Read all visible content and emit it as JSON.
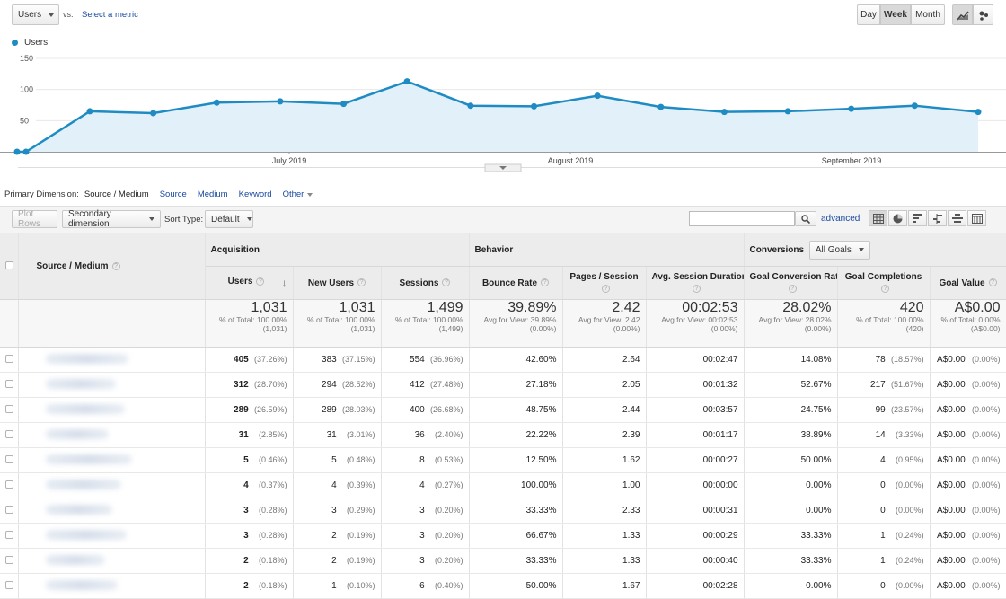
{
  "header": {
    "metric_select": "Users",
    "vs_label": "vs.",
    "select_metric_link": "Select a metric",
    "periods": [
      "Day",
      "Week",
      "Month"
    ],
    "active_period": "Week"
  },
  "chart_data": {
    "type": "line",
    "series": [
      {
        "name": "Users",
        "values": [
          0,
          0,
          65,
          62,
          79,
          81,
          77,
          113,
          74,
          73,
          90,
          72,
          64,
          65,
          69,
          74,
          64
        ]
      }
    ],
    "x_labels": [
      "July 2019",
      "August 2019",
      "September 2019"
    ],
    "left_label": "...",
    "yticks": [
      50,
      100,
      150
    ],
    "ylim": [
      0,
      150
    ],
    "color": "#1e8bc3",
    "fill": "#e2f0f9",
    "grid": true
  },
  "dimension_bar": {
    "label": "Primary Dimension:",
    "current": "Source / Medium",
    "options": [
      "Source",
      "Medium",
      "Keyword",
      "Other"
    ]
  },
  "toolbar": {
    "plot_rows": "Plot Rows",
    "secondary_dimension": "Secondary dimension",
    "sort_type_label": "Sort Type:",
    "sort_type_value": "Default",
    "search_placeholder": "",
    "advanced": "advanced"
  },
  "table": {
    "dim_header": "Source / Medium",
    "groups": {
      "acquisition": "Acquisition",
      "behavior": "Behavior",
      "conversions": "Conversions",
      "goals_select": "All Goals"
    },
    "columns": [
      "Users",
      "New Users",
      "Sessions",
      "Bounce Rate",
      "Pages / Session",
      "Avg. Session Duration",
      "Goal Conversion Rate",
      "Goal Completions",
      "Goal Value"
    ],
    "totals": [
      {
        "value": "1,031",
        "l1": "% of Total: 100.00%",
        "l2": "(1,031)"
      },
      {
        "value": "1,031",
        "l1": "% of Total: 100.00%",
        "l2": "(1,031)"
      },
      {
        "value": "1,499",
        "l1": "% of Total: 100.00%",
        "l2": "(1,499)"
      },
      {
        "value": "39.89%",
        "l1": "Avg for View: 39.89%",
        "l2": "(0.00%)"
      },
      {
        "value": "2.42",
        "l1": "Avg for View: 2.42",
        "l2": "(0.00%)"
      },
      {
        "value": "00:02:53",
        "l1": "Avg for View: 00:02:53",
        "l2": "(0.00%)"
      },
      {
        "value": "28.02%",
        "l1": "Avg for View: 28.02%",
        "l2": "(0.00%)"
      },
      {
        "value": "420",
        "l1": "% of Total: 100.00%",
        "l2": "(420)"
      },
      {
        "value": "A$0.00",
        "l1": "% of Total: 0.00%",
        "l2": "(A$0.00)"
      }
    ],
    "rows": [
      {
        "users": "405",
        "users_pct": "(37.26%)",
        "new": "383",
        "new_pct": "(37.15%)",
        "sess": "554",
        "sess_pct": "(36.96%)",
        "bounce": "42.60%",
        "pps": "2.64",
        "dur": "00:02:47",
        "gcr": "14.08%",
        "gc": "78",
        "gc_pct": "(18.57%)",
        "gv": "A$0.00",
        "gv_pct": "(0.00%)"
      },
      {
        "users": "312",
        "users_pct": "(28.70%)",
        "new": "294",
        "new_pct": "(28.52%)",
        "sess": "412",
        "sess_pct": "(27.48%)",
        "bounce": "27.18%",
        "pps": "2.05",
        "dur": "00:01:32",
        "gcr": "52.67%",
        "gc": "217",
        "gc_pct": "(51.67%)",
        "gv": "A$0.00",
        "gv_pct": "(0.00%)"
      },
      {
        "users": "289",
        "users_pct": "(26.59%)",
        "new": "289",
        "new_pct": "(28.03%)",
        "sess": "400",
        "sess_pct": "(26.68%)",
        "bounce": "48.75%",
        "pps": "2.44",
        "dur": "00:03:57",
        "gcr": "24.75%",
        "gc": "99",
        "gc_pct": "(23.57%)",
        "gv": "A$0.00",
        "gv_pct": "(0.00%)"
      },
      {
        "users": "31",
        "users_pct": "(2.85%)",
        "new": "31",
        "new_pct": "(3.01%)",
        "sess": "36",
        "sess_pct": "(2.40%)",
        "bounce": "22.22%",
        "pps": "2.39",
        "dur": "00:01:17",
        "gcr": "38.89%",
        "gc": "14",
        "gc_pct": "(3.33%)",
        "gv": "A$0.00",
        "gv_pct": "(0.00%)"
      },
      {
        "users": "5",
        "users_pct": "(0.46%)",
        "new": "5",
        "new_pct": "(0.48%)",
        "sess": "8",
        "sess_pct": "(0.53%)",
        "bounce": "12.50%",
        "pps": "1.62",
        "dur": "00:00:27",
        "gcr": "50.00%",
        "gc": "4",
        "gc_pct": "(0.95%)",
        "gv": "A$0.00",
        "gv_pct": "(0.00%)"
      },
      {
        "users": "4",
        "users_pct": "(0.37%)",
        "new": "4",
        "new_pct": "(0.39%)",
        "sess": "4",
        "sess_pct": "(0.27%)",
        "bounce": "100.00%",
        "pps": "1.00",
        "dur": "00:00:00",
        "gcr": "0.00%",
        "gc": "0",
        "gc_pct": "(0.00%)",
        "gv": "A$0.00",
        "gv_pct": "(0.00%)"
      },
      {
        "users": "3",
        "users_pct": "(0.28%)",
        "new": "3",
        "new_pct": "(0.29%)",
        "sess": "3",
        "sess_pct": "(0.20%)",
        "bounce": "33.33%",
        "pps": "2.33",
        "dur": "00:00:31",
        "gcr": "0.00%",
        "gc": "0",
        "gc_pct": "(0.00%)",
        "gv": "A$0.00",
        "gv_pct": "(0.00%)"
      },
      {
        "users": "3",
        "users_pct": "(0.28%)",
        "new": "2",
        "new_pct": "(0.19%)",
        "sess": "3",
        "sess_pct": "(0.20%)",
        "bounce": "66.67%",
        "pps": "1.33",
        "dur": "00:00:29",
        "gcr": "33.33%",
        "gc": "1",
        "gc_pct": "(0.24%)",
        "gv": "A$0.00",
        "gv_pct": "(0.00%)"
      },
      {
        "users": "2",
        "users_pct": "(0.18%)",
        "new": "2",
        "new_pct": "(0.19%)",
        "sess": "3",
        "sess_pct": "(0.20%)",
        "bounce": "33.33%",
        "pps": "1.33",
        "dur": "00:00:40",
        "gcr": "33.33%",
        "gc": "1",
        "gc_pct": "(0.24%)",
        "gv": "A$0.00",
        "gv_pct": "(0.00%)"
      },
      {
        "users": "2",
        "users_pct": "(0.18%)",
        "new": "1",
        "new_pct": "(0.10%)",
        "sess": "6",
        "sess_pct": "(0.40%)",
        "bounce": "50.00%",
        "pps": "1.67",
        "dur": "00:02:28",
        "gcr": "0.00%",
        "gc": "0",
        "gc_pct": "(0.00%)",
        "gv": "A$0.00",
        "gv_pct": "(0.00%)"
      }
    ]
  }
}
